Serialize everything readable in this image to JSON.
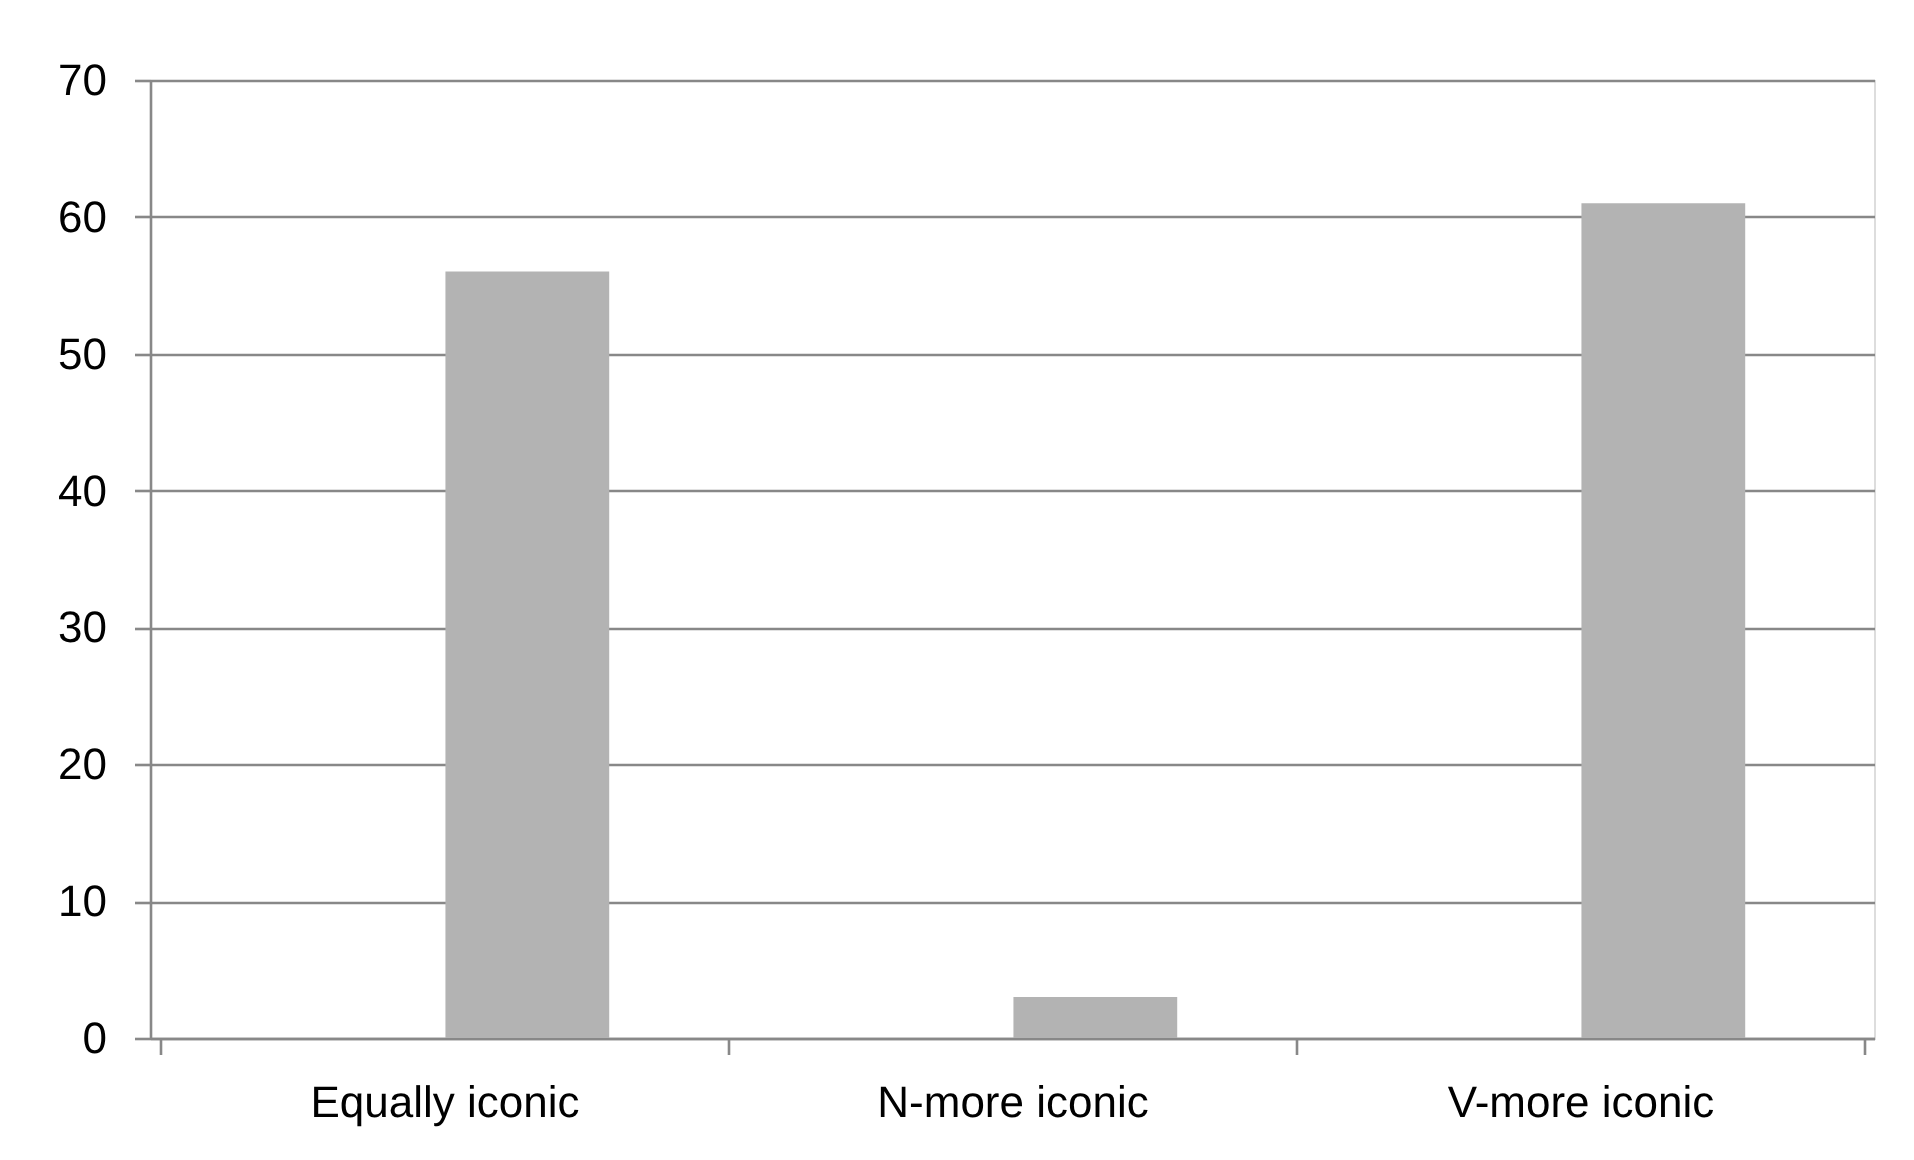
{
  "chart_data": {
    "type": "bar",
    "categories": [
      "Equally iconic",
      "N-more iconic",
      "V-more iconic"
    ],
    "values": [
      56,
      3,
      61
    ],
    "color": "#b3b3b3",
    "ylim": [
      0,
      70
    ],
    "yticks": [
      0,
      10,
      20,
      30,
      40,
      50,
      60,
      70
    ],
    "grid": "y"
  }
}
